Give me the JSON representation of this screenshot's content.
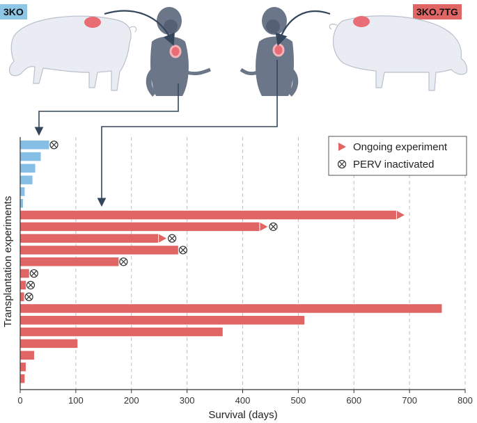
{
  "labels": {
    "left_group": "3KO",
    "right_group": "3KO.7TG",
    "left_group_color": "#8ec6e6",
    "right_group_color": "#e06666"
  },
  "chart_data": {
    "type": "bar",
    "orientation": "horizontal",
    "xlabel": "Survival (days)",
    "ylabel": "Transplantation experiments",
    "xlim": [
      0,
      800
    ],
    "xticks": [
      0,
      100,
      200,
      300,
      400,
      500,
      600,
      700,
      800
    ],
    "grid": "vertical dashed",
    "legend": [
      {
        "label": "Ongoing experiment",
        "marker": "triangle"
      },
      {
        "label": "PERV inactivated",
        "marker": "circled-x"
      }
    ],
    "legend_position": "top-right",
    "colors": {
      "3KO": "#86bfe6",
      "3KO.7TG": "#e06666"
    },
    "groups": [
      {
        "group": "3KO",
        "bars": [
          {
            "value": 52,
            "ongoing": false,
            "perv_inactivated": true
          },
          {
            "value": 37,
            "ongoing": false,
            "perv_inactivated": false
          },
          {
            "value": 27,
            "ongoing": false,
            "perv_inactivated": false
          },
          {
            "value": 22,
            "ongoing": false,
            "perv_inactivated": false
          },
          {
            "value": 8,
            "ongoing": false,
            "perv_inactivated": false
          },
          {
            "value": 5,
            "ongoing": false,
            "perv_inactivated": false
          }
        ]
      },
      {
        "group": "3KO.7TG",
        "bars": [
          {
            "value": 676,
            "ongoing": true,
            "perv_inactivated": false
          },
          {
            "value": 430,
            "ongoing": true,
            "perv_inactivated": true
          },
          {
            "value": 248,
            "ongoing": true,
            "perv_inactivated": true
          },
          {
            "value": 284,
            "ongoing": false,
            "perv_inactivated": true
          },
          {
            "value": 177,
            "ongoing": false,
            "perv_inactivated": true
          },
          {
            "value": 16,
            "ongoing": false,
            "perv_inactivated": true
          },
          {
            "value": 10,
            "ongoing": false,
            "perv_inactivated": true
          },
          {
            "value": 7,
            "ongoing": false,
            "perv_inactivated": true
          },
          {
            "value": 758,
            "ongoing": false,
            "perv_inactivated": false
          },
          {
            "value": 511,
            "ongoing": false,
            "perv_inactivated": false
          },
          {
            "value": 364,
            "ongoing": false,
            "perv_inactivated": false
          },
          {
            "value": 103,
            "ongoing": false,
            "perv_inactivated": false
          },
          {
            "value": 25,
            "ongoing": false,
            "perv_inactivated": false
          },
          {
            "value": 10,
            "ongoing": false,
            "perv_inactivated": false
          },
          {
            "value": 8,
            "ongoing": false,
            "perv_inactivated": false
          }
        ]
      }
    ]
  }
}
